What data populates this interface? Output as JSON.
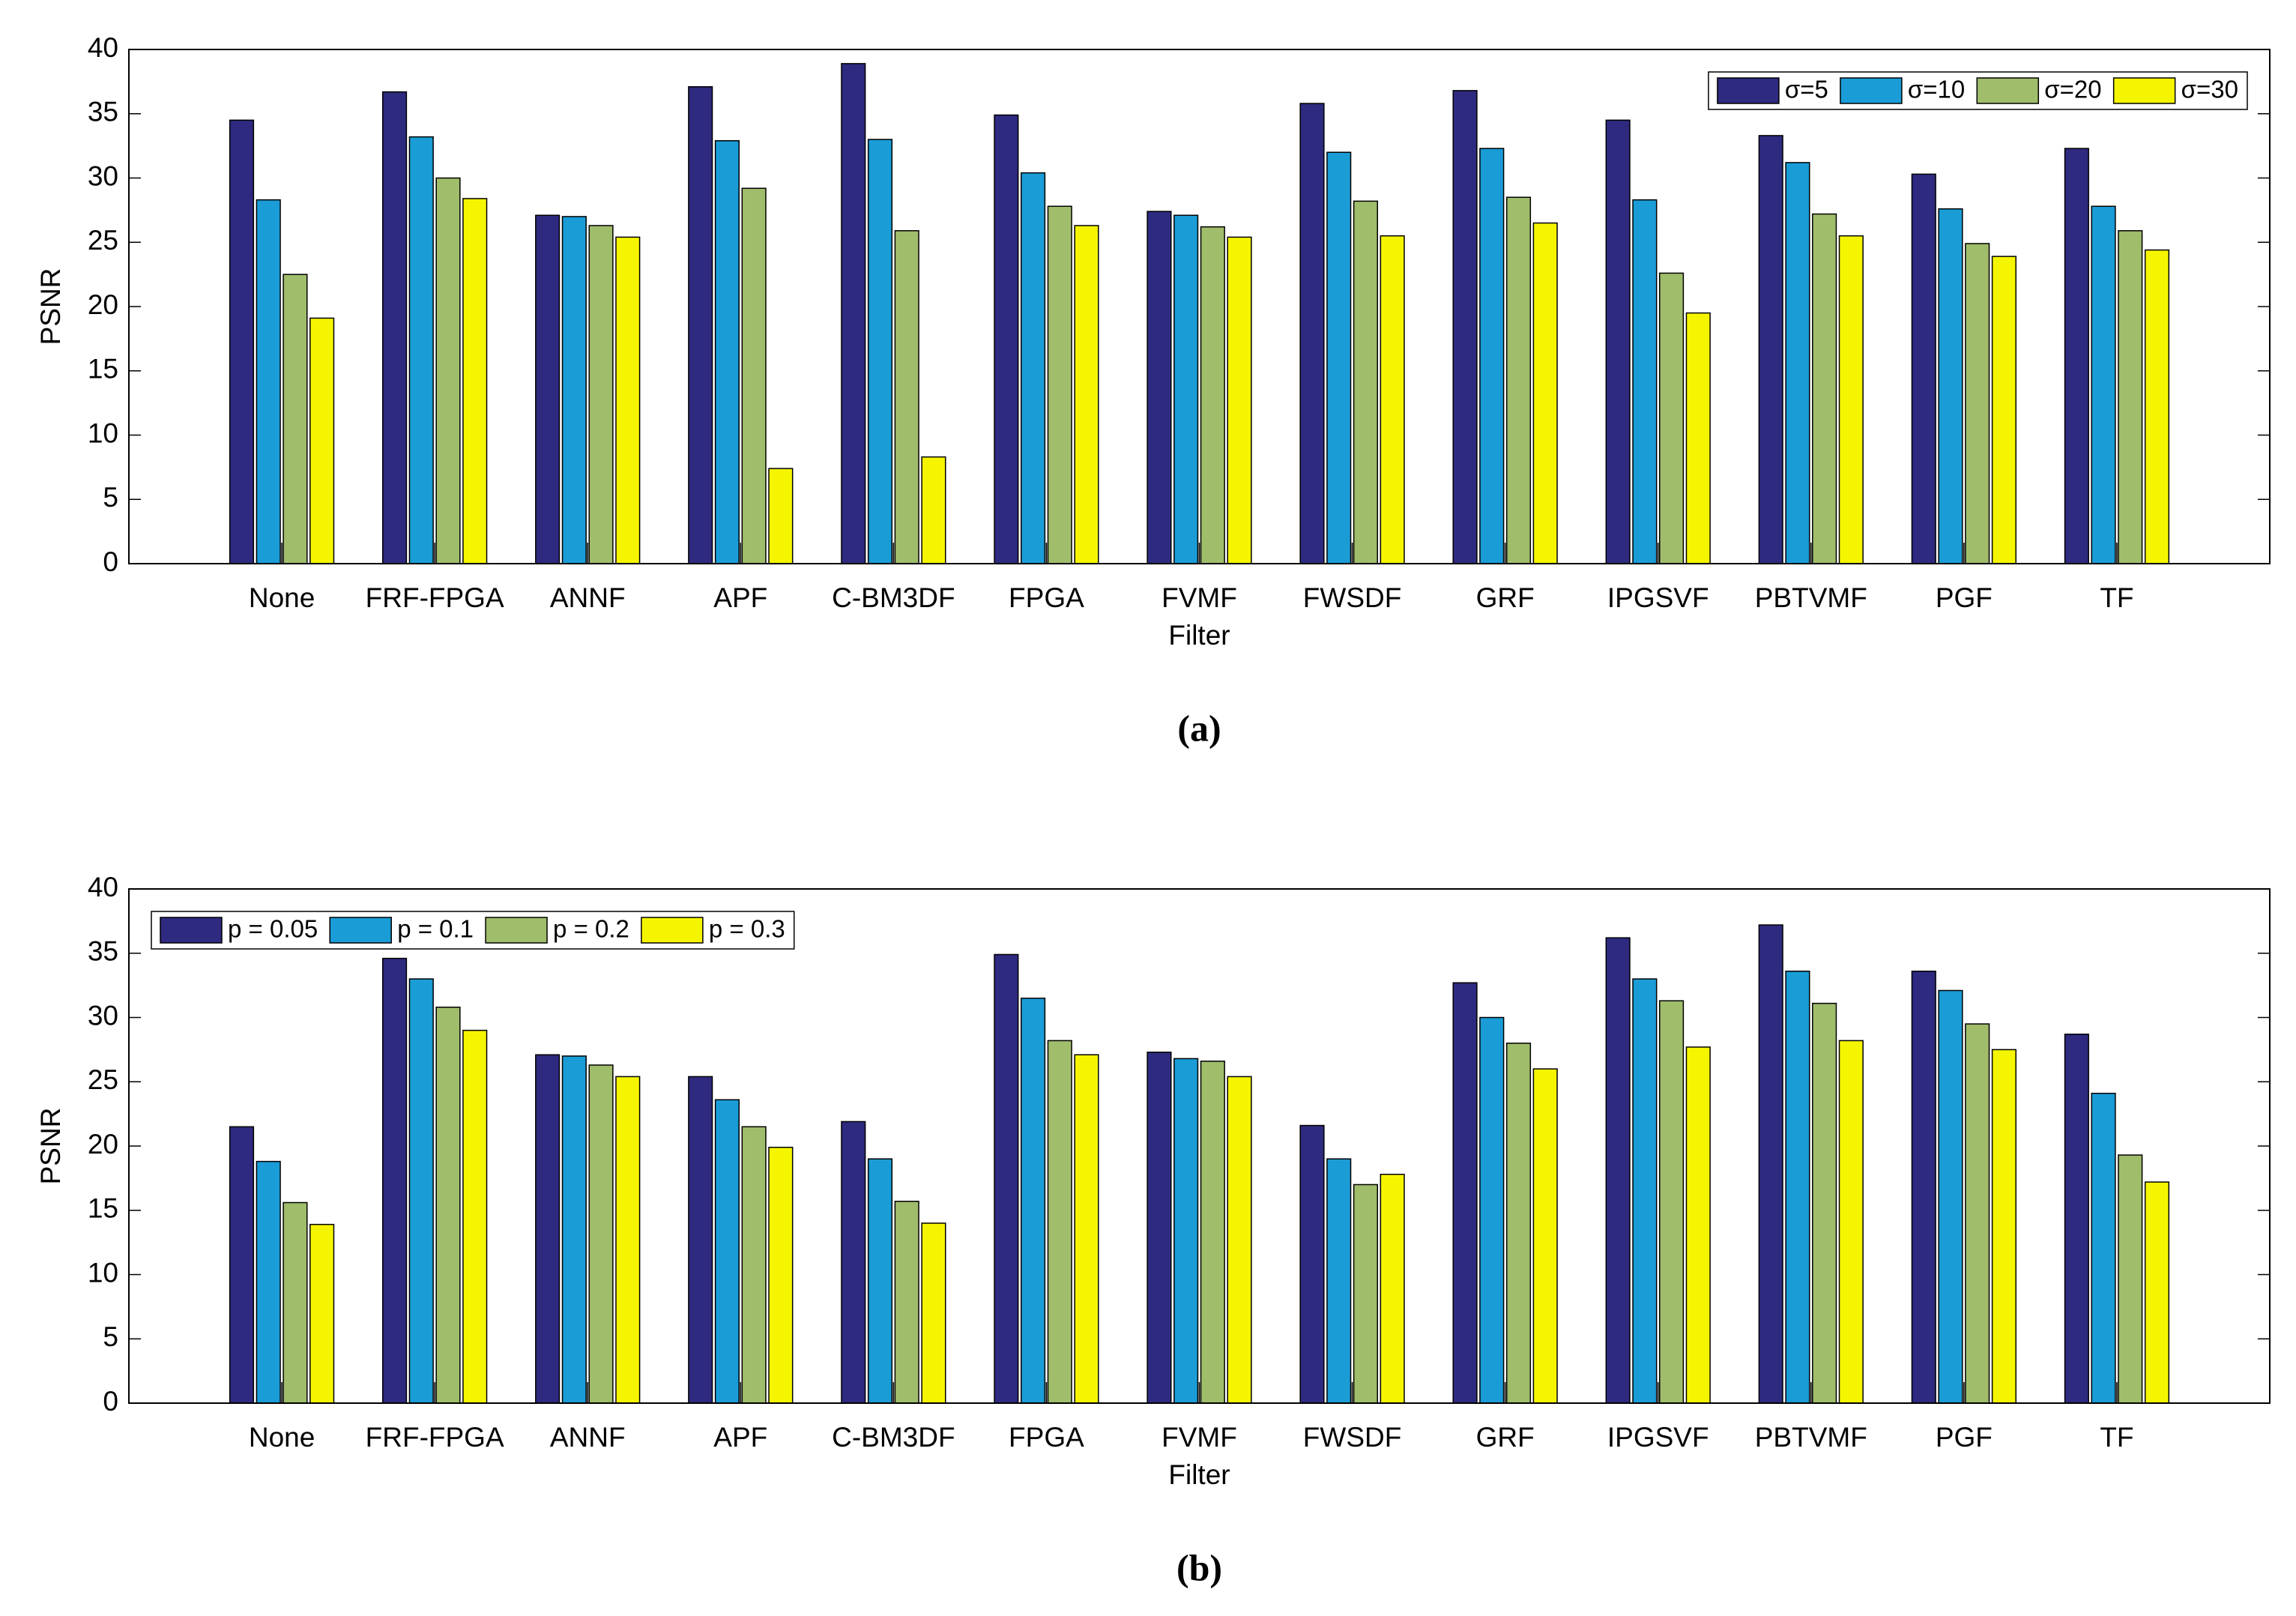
{
  "chart_data": [
    {
      "type": "bar",
      "caption": "(a)",
      "x_label": "Filter",
      "y_label": "PSNR",
      "categories": [
        "None",
        "FRF-FPGA",
        "ANNF",
        "APF",
        "C-BM3DF",
        "FPGA",
        "FVMF",
        "FWSDF",
        "GRF",
        "IPGSVF",
        "PBTVMF",
        "PGF",
        "TF"
      ],
      "series": [
        {
          "name": "σ=5",
          "color": "#2e2a7f",
          "values": [
            34.5,
            36.7,
            27.1,
            37.1,
            38.9,
            34.9,
            27.4,
            35.8,
            36.8,
            34.5,
            33.3,
            30.3,
            32.3
          ]
        },
        {
          "name": "σ=10",
          "color": "#1a9cd6",
          "values": [
            28.3,
            33.2,
            27.0,
            32.9,
            33.0,
            30.4,
            27.1,
            32.0,
            32.3,
            28.3,
            31.2,
            27.6,
            27.8
          ]
        },
        {
          "name": "σ=20",
          "color": "#a0bd6b",
          "values": [
            22.5,
            30.0,
            26.3,
            29.2,
            25.9,
            27.8,
            26.2,
            28.2,
            28.5,
            22.6,
            27.2,
            24.9,
            25.9
          ]
        },
        {
          "name": "σ=30",
          "color": "#f5f500",
          "values": [
            19.1,
            28.4,
            25.4,
            7.4,
            8.3,
            26.3,
            25.4,
            25.5,
            26.5,
            19.5,
            25.5,
            23.9,
            24.4
          ]
        }
      ],
      "ylim": [
        0,
        40
      ],
      "yticks": [
        0,
        5,
        10,
        15,
        20,
        25,
        30,
        35,
        40
      ],
      "grid": false,
      "legend": "upper right"
    },
    {
      "type": "bar",
      "caption": "(b)",
      "x_label": "Filter",
      "y_label": "PSNR",
      "categories": [
        "None",
        "FRF-FPGA",
        "ANNF",
        "APF",
        "C-BM3DF",
        "FPGA",
        "FVMF",
        "FWSDF",
        "GRF",
        "IPGSVF",
        "PBTVMF",
        "PGF",
        "TF"
      ],
      "series": [
        {
          "name": "p = 0.05",
          "color": "#2e2a7f",
          "values": [
            21.5,
            34.6,
            27.1,
            25.4,
            21.9,
            34.9,
            27.3,
            21.6,
            32.7,
            36.2,
            37.2,
            33.6,
            28.7
          ]
        },
        {
          "name": "p = 0.1",
          "color": "#1a9cd6",
          "values": [
            18.8,
            33.0,
            27.0,
            23.6,
            19.0,
            31.5,
            26.8,
            19.0,
            30.0,
            33.0,
            33.6,
            32.1,
            24.1
          ]
        },
        {
          "name": "p = 0.2",
          "color": "#a0bd6b",
          "values": [
            15.6,
            30.8,
            26.3,
            21.5,
            15.7,
            28.2,
            26.6,
            17.0,
            28.0,
            31.3,
            31.1,
            29.5,
            19.3
          ]
        },
        {
          "name": "p = 0.3",
          "color": "#f5f500",
          "values": [
            13.9,
            29.0,
            25.4,
            19.9,
            14.0,
            27.1,
            25.4,
            17.8,
            26.0,
            27.7,
            28.2,
            27.5,
            17.2
          ]
        }
      ],
      "ylim": [
        0,
        40
      ],
      "yticks": [
        0,
        5,
        10,
        15,
        20,
        25,
        30,
        35,
        40
      ],
      "grid": false,
      "legend": "upper left"
    }
  ]
}
